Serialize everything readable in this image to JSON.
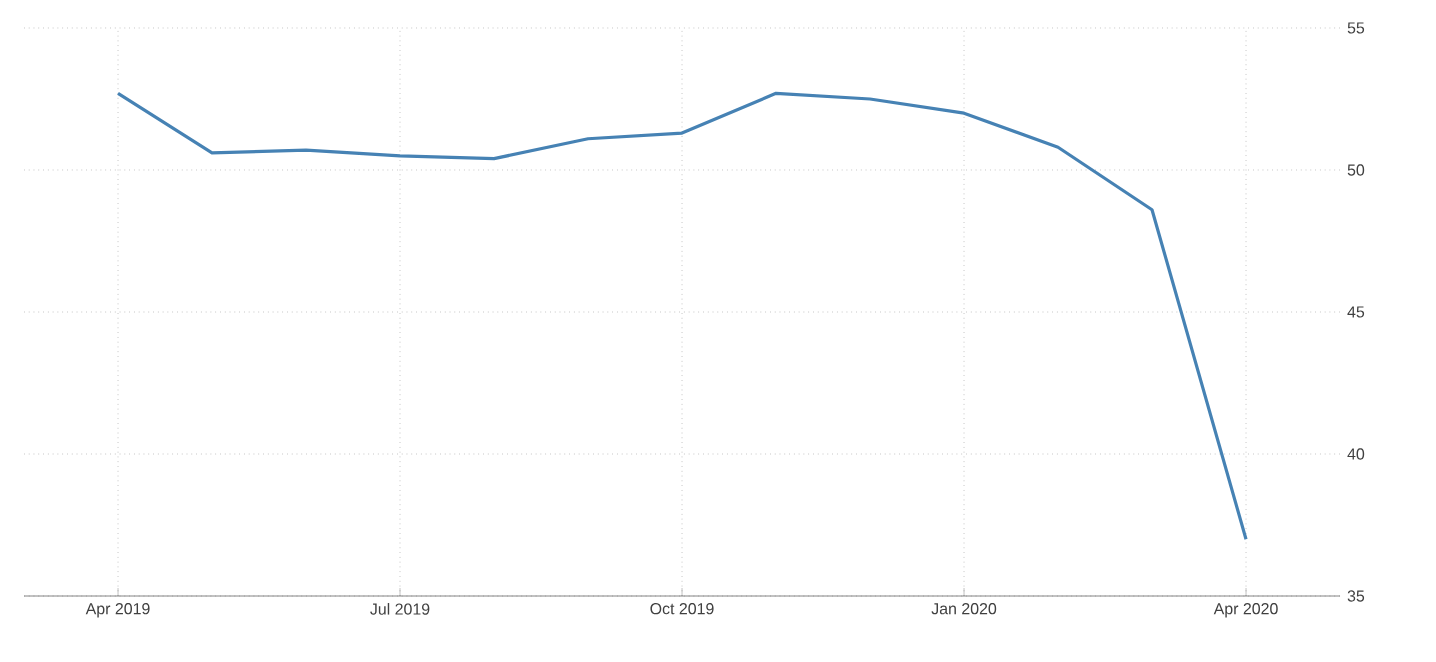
{
  "chart_data": {
    "type": "line",
    "x": [
      "2019-04",
      "2019-05",
      "2019-06",
      "2019-07",
      "2019-08",
      "2019-09",
      "2019-10",
      "2019-11",
      "2019-12",
      "2020-01",
      "2020-02",
      "2020-03",
      "2020-04"
    ],
    "series": [
      {
        "color": "#4682b4",
        "values": [
          52.7,
          50.6,
          50.7,
          50.5,
          50.4,
          51.1,
          51.3,
          52.7,
          52.5,
          52.0,
          50.8,
          48.6,
          37.0
        ]
      }
    ],
    "xlim": [
      "2019-03",
      "2020-05"
    ],
    "ylim": [
      35,
      55
    ],
    "xticks": [
      {
        "value": "2019-04",
        "label": "Apr 2019"
      },
      {
        "value": "2019-07",
        "label": "Jul 2019"
      },
      {
        "value": "2019-10",
        "label": "Oct 2019"
      },
      {
        "value": "2020-01",
        "label": "Jan 2020"
      },
      {
        "value": "2020-04",
        "label": "Apr 2020"
      }
    ],
    "yticks": [
      35,
      40,
      45,
      50,
      55
    ],
    "grid": true,
    "marker": "none",
    "line_style": "solid"
  }
}
